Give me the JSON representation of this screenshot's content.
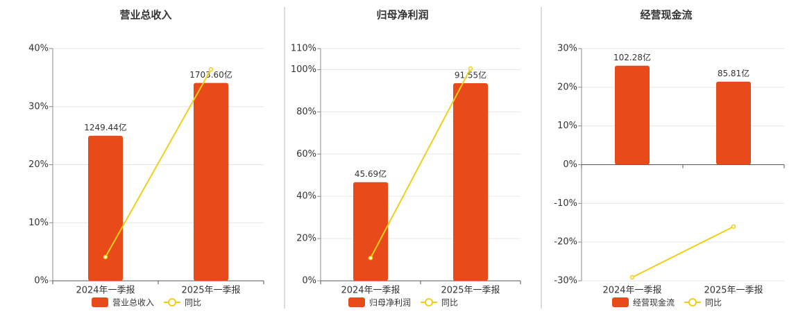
{
  "chart_data": [
    {
      "type": "bar",
      "title": "营业总收入",
      "categories": [
        "2024年一季报",
        "2025年一季报"
      ],
      "series": [
        {
          "name": "营业总收入",
          "type": "bar",
          "color": "#e84a1a",
          "axis": "y2",
          "values": [
            1249.44,
            1703.6
          ],
          "value_labels": [
            "1249.44亿",
            "1703.60亿"
          ]
        },
        {
          "name": "同比",
          "type": "line",
          "color": "#f0cf16",
          "values": [
            4.1,
            36.4
          ]
        }
      ],
      "ylim": [
        0,
        40
      ],
      "yticks": [
        {
          "value": 0,
          "label": "0%"
        },
        {
          "value": 10,
          "label": "10%"
        },
        {
          "value": 20,
          "label": "20%"
        },
        {
          "value": 30,
          "label": "30%"
        },
        {
          "value": 40,
          "label": "40%"
        }
      ],
      "y2lim": [
        0,
        2000
      ],
      "grid": true
    },
    {
      "type": "bar",
      "title": "归母净利润",
      "categories": [
        "2024年一季报",
        "2025年一季报"
      ],
      "series": [
        {
          "name": "归母净利润",
          "type": "bar",
          "color": "#e84a1a",
          "axis": "y2",
          "values": [
            45.69,
            91.55
          ],
          "value_labels": [
            "45.69亿",
            "91.55亿"
          ]
        },
        {
          "name": "同比",
          "type": "line",
          "color": "#f0cf16",
          "values": [
            10.8,
            100.5
          ]
        }
      ],
      "ylim": [
        0,
        110
      ],
      "yticks": [
        {
          "value": 0,
          "label": "0%"
        },
        {
          "value": 20,
          "label": "20%"
        },
        {
          "value": 40,
          "label": "40%"
        },
        {
          "value": 60,
          "label": "60%"
        },
        {
          "value": 80,
          "label": "80%"
        },
        {
          "value": 100,
          "label": "100%"
        },
        {
          "value": 110,
          "label": "110%"
        }
      ],
      "y2lim": [
        0,
        107.6
      ],
      "grid": true
    },
    {
      "type": "bar",
      "title": "经营现金流",
      "categories": [
        "2024年一季报",
        "2025年一季报"
      ],
      "series": [
        {
          "name": "经营现金流",
          "type": "bar",
          "color": "#e84a1a",
          "axis": "y2",
          "values": [
            102.28,
            85.81
          ],
          "value_labels": [
            "102.28亿",
            "85.81亿"
          ]
        },
        {
          "name": "同比",
          "type": "line",
          "color": "#f0cf16",
          "values": [
            -29.1,
            -16.0
          ]
        }
      ],
      "ylim": [
        -30,
        30
      ],
      "yticks": [
        {
          "value": -30,
          "label": "-30%"
        },
        {
          "value": -20,
          "label": "-20%"
        },
        {
          "value": -10,
          "label": "-10%"
        },
        {
          "value": 0,
          "label": "0%"
        },
        {
          "value": 10,
          "label": "10%"
        },
        {
          "value": 20,
          "label": "20%"
        },
        {
          "value": 30,
          "label": "30%"
        }
      ],
      "y2lim": [
        -120,
        120
      ],
      "grid": true
    }
  ]
}
